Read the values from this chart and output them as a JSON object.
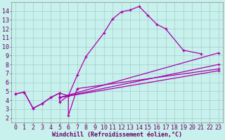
{
  "title": "",
  "xlabel": "Windchill (Refroidissement éolien,°C)",
  "bg_color": "#c8f0ec",
  "line_color": "#aa00aa",
  "grid_color": "#a0d0cc",
  "xlim": [
    -0.5,
    23.5
  ],
  "ylim": [
    1.5,
    15.0
  ],
  "yticks": [
    2,
    3,
    4,
    5,
    6,
    7,
    8,
    9,
    10,
    11,
    12,
    13,
    14
  ],
  "xticks": [
    0,
    1,
    2,
    3,
    4,
    5,
    6,
    7,
    8,
    9,
    10,
    11,
    12,
    13,
    14,
    15,
    16,
    17,
    18,
    19,
    20,
    21,
    22,
    23
  ],
  "series": [
    {
      "x": [
        0,
        1,
        2,
        3,
        4,
        5,
        6,
        7,
        8,
        10,
        11,
        12,
        13,
        14,
        15,
        16,
        17,
        19,
        21
      ],
      "y": [
        4.7,
        4.9,
        3.1,
        3.6,
        4.3,
        4.8,
        4.5,
        6.8,
        8.9,
        11.5,
        13.1,
        13.9,
        14.1,
        14.5,
        13.5,
        12.5,
        12.0,
        9.6,
        9.2
      ]
    },
    {
      "x": [
        0,
        1,
        2,
        3,
        4,
        5,
        5,
        6,
        6,
        7,
        23
      ],
      "y": [
        4.7,
        4.9,
        3.1,
        3.6,
        4.3,
        4.8,
        3.8,
        4.5,
        2.3,
        5.3,
        7.5
      ]
    },
    {
      "x": [
        5,
        23
      ],
      "y": [
        4.3,
        9.3
      ]
    },
    {
      "x": [
        5,
        23
      ],
      "y": [
        4.3,
        8.0
      ]
    },
    {
      "x": [
        5,
        23
      ],
      "y": [
        4.3,
        7.3
      ]
    }
  ],
  "font_color": "#660066",
  "font_size": 6,
  "tick_font_size": 6,
  "lw": 0.9,
  "marker_size": 3,
  "marker": "+"
}
